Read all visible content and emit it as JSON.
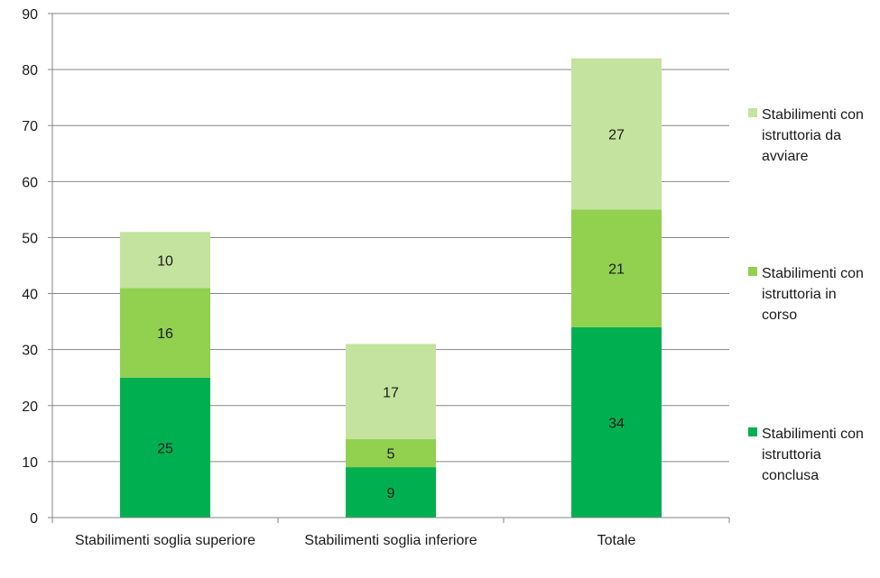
{
  "chart_data": {
    "type": "bar",
    "stacked": true,
    "categories": [
      "Stabilimenti soglia superiore",
      "Stabilimenti soglia inferiore",
      "Totale"
    ],
    "series": [
      {
        "name": "Stabilimenti con istruttoria conclusa",
        "values": [
          25,
          9,
          34
        ],
        "color": "#00b050"
      },
      {
        "name": "Stabilimenti con istruttoria in corso",
        "values": [
          16,
          5,
          21
        ],
        "color": "#92d050"
      },
      {
        "name": "Stabilimenti con istruttoria da avviare",
        "values": [
          10,
          17,
          27
        ],
        "color": "#c4e39e"
      }
    ],
    "legend_lines": [
      [
        "Stabilimenti con",
        "istruttoria da",
        "avviare"
      ],
      [
        "Stabilimenti con",
        "istruttoria in",
        "corso"
      ],
      [
        "Stabilimenti con",
        "istruttoria",
        "conclusa"
      ]
    ],
    "ylim": [
      0,
      90
    ],
    "yticks": [
      0,
      10,
      20,
      30,
      40,
      50,
      60,
      70,
      80,
      90
    ],
    "grid": true,
    "legend": "right",
    "gridline_color": "#868686"
  }
}
